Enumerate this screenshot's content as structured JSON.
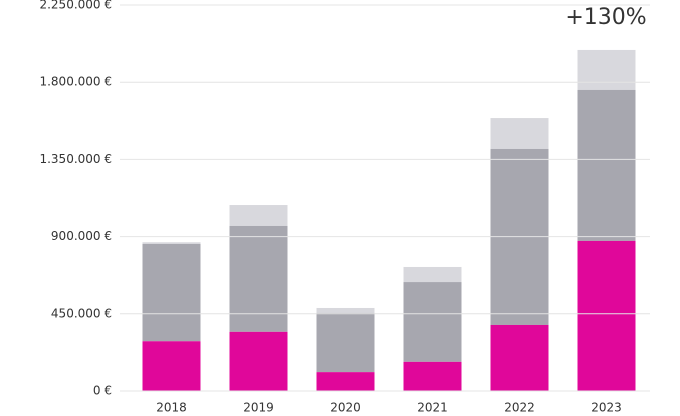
{
  "chart_data": {
    "type": "stacked-bar",
    "categories": [
      "2018",
      "2019",
      "2020",
      "2021",
      "2022",
      "2023"
    ],
    "series": [
      {
        "color": "#e0079a",
        "values": [
          290000,
          345000,
          110000,
          170000,
          385000,
          875000
        ]
      },
      {
        "color": "#a7a7af",
        "values": [
          567000,
          617000,
          345000,
          465000,
          1026000,
          880000
        ]
      },
      {
        "color": "#d8d8dd",
        "values": [
          10000,
          122000,
          29000,
          88000,
          180000,
          233000
        ]
      }
    ],
    "ylim": [
      0,
      2250000
    ],
    "yticks": [
      {
        "value": 0,
        "label": "0 €"
      },
      {
        "value": 450000,
        "label": "450.000 €"
      },
      {
        "value": 900000,
        "label": "900.000 €"
      },
      {
        "value": 1350000,
        "label": "1.350.000 €"
      },
      {
        "value": 1800000,
        "label": "1.800.000 €"
      },
      {
        "value": 2250000,
        "label": "2.250.000 €"
      }
    ],
    "grid": true,
    "annotation": "+130%"
  }
}
